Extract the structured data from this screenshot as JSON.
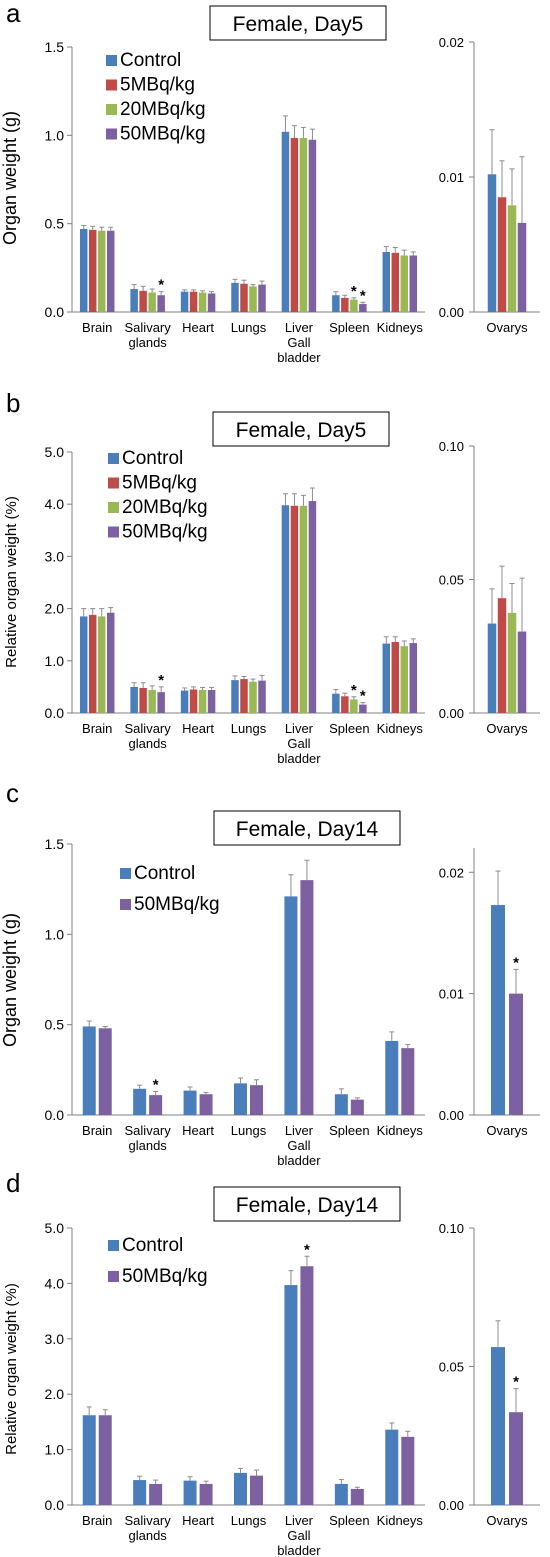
{
  "colors": {
    "Control": "#4a7ebb",
    "5MBq/kg": "#be4b48",
    "20MBq/kg": "#98b954",
    "50MBq/kg": "#7d60a0",
    "error_bar": "#8c8c8c",
    "axis": "#808080"
  },
  "chart_data": [
    {
      "type": "bar",
      "panel_letter": "a",
      "title": "Female, Day5",
      "ylabel": "Organ weight (g)",
      "categories": [
        "Brain",
        "Salivary glands",
        "Heart",
        "Lungs",
        "Liver Gall bladder",
        "Spleen",
        "Kidneys"
      ],
      "category_lines": [
        [
          "Brain"
        ],
        [
          "Salivary",
          "glands"
        ],
        [
          "Heart"
        ],
        [
          "Lungs"
        ],
        [
          "Liver",
          "Gall",
          "bladder"
        ],
        [
          "Spleen"
        ],
        [
          "Kidneys"
        ]
      ],
      "ylim": [
        0,
        1.5
      ],
      "yticks": [
        0,
        0.5,
        1.0,
        1.5
      ],
      "ytick_labels": [
        "0.0",
        "0.5",
        "1.0",
        "1.5"
      ],
      "series": [
        {
          "name": "Control",
          "values": [
            0.47,
            0.13,
            0.115,
            0.165,
            1.02,
            0.095,
            0.34
          ],
          "errors": [
            0.02,
            0.025,
            0.01,
            0.02,
            0.09,
            0.02,
            0.03
          ]
        },
        {
          "name": "5MBq/kg",
          "values": [
            0.465,
            0.12,
            0.115,
            0.16,
            0.985,
            0.08,
            0.335
          ],
          "errors": [
            0.02,
            0.025,
            0.01,
            0.02,
            0.07,
            0.015,
            0.03
          ]
        },
        {
          "name": "20MBq/kg",
          "values": [
            0.46,
            0.11,
            0.11,
            0.145,
            0.985,
            0.07,
            0.32
          ],
          "errors": [
            0.02,
            0.02,
            0.01,
            0.01,
            0.06,
            0.01,
            0.03
          ]
        },
        {
          "name": "50MBq/kg",
          "values": [
            0.46,
            0.095,
            0.105,
            0.155,
            0.975,
            0.045,
            0.32
          ],
          "errors": [
            0.02,
            0.02,
            0.01,
            0.02,
            0.06,
            0.01,
            0.02
          ]
        }
      ],
      "significance": [
        [
          1,
          3
        ],
        [
          5,
          2
        ],
        [
          5,
          3
        ]
      ],
      "legend": "top-left",
      "inset": {
        "categories": [
          "Ovarys"
        ],
        "ylim": [
          0,
          0.02
        ],
        "yticks": [
          0,
          0.01,
          0.02
        ],
        "ytick_labels": [
          "0.00",
          "0.01",
          "0.02"
        ],
        "values": [
          0.0102,
          0.0085,
          0.0079,
          0.0066
        ],
        "errors": [
          0.0033,
          0.0027,
          0.0027,
          0.0049
        ],
        "significance": []
      }
    },
    {
      "type": "bar",
      "panel_letter": "b",
      "title": "Female, Day5",
      "ylabel": "Relative organ weight (%)",
      "categories": [
        "Brain",
        "Salivary glands",
        "Heart",
        "Lungs",
        "Liver Gall bladder",
        "Spleen",
        "Kidneys"
      ],
      "category_lines": [
        [
          "Brain"
        ],
        [
          "Salivary",
          "glands"
        ],
        [
          "Heart"
        ],
        [
          "Lungs"
        ],
        [
          "Liver",
          "Gall",
          "bladder"
        ],
        [
          "Spleen"
        ],
        [
          "Kidneys"
        ]
      ],
      "ylim": [
        0,
        5.0
      ],
      "yticks": [
        0,
        1,
        2,
        3,
        4,
        5
      ],
      "ytick_labels": [
        "0.0",
        "1.0",
        "2.0",
        "3.0",
        "4.0",
        "5.0"
      ],
      "series": [
        {
          "name": "Control",
          "values": [
            1.85,
            0.5,
            0.43,
            0.63,
            3.98,
            0.37,
            1.33
          ],
          "errors": [
            0.15,
            0.08,
            0.05,
            0.08,
            0.22,
            0.08,
            0.13
          ]
        },
        {
          "name": "5MBq/kg",
          "values": [
            1.88,
            0.48,
            0.45,
            0.65,
            3.97,
            0.32,
            1.36
          ],
          "errors": [
            0.12,
            0.1,
            0.05,
            0.05,
            0.23,
            0.06,
            0.1
          ]
        },
        {
          "name": "20MBq/kg",
          "values": [
            1.85,
            0.44,
            0.44,
            0.6,
            3.97,
            0.26,
            1.28
          ],
          "errors": [
            0.15,
            0.08,
            0.05,
            0.05,
            0.2,
            0.05,
            0.1
          ]
        },
        {
          "name": "50MBq/kg",
          "values": [
            1.92,
            0.4,
            0.44,
            0.62,
            4.06,
            0.16,
            1.34
          ],
          "errors": [
            0.1,
            0.1,
            0.05,
            0.1,
            0.25,
            0.04,
            0.08
          ]
        }
      ],
      "significance": [
        [
          1,
          3
        ],
        [
          5,
          2
        ],
        [
          5,
          3
        ]
      ],
      "legend": "top-left",
      "inset": {
        "categories": [
          "Ovarys"
        ],
        "ylim": [
          0,
          0.1
        ],
        "yticks": [
          0,
          0.05,
          0.1
        ],
        "ytick_labels": [
          "0.00",
          "0.05",
          "0.10"
        ],
        "values": [
          0.0335,
          0.043,
          0.0375,
          0.0305
        ],
        "errors": [
          0.013,
          0.012,
          0.011,
          0.02
        ],
        "significance": []
      }
    },
    {
      "type": "bar",
      "panel_letter": "c",
      "title": "Female, Day14",
      "ylabel": "Organ weight (g)",
      "categories": [
        "Brain",
        "Salivary glands",
        "Heart",
        "Lungs",
        "Liver Gall bladder",
        "Spleen",
        "Kidneys"
      ],
      "category_lines": [
        [
          "Brain"
        ],
        [
          "Salivary",
          "glands"
        ],
        [
          "Heart"
        ],
        [
          "Lungs"
        ],
        [
          "Liver",
          "Gall",
          "bladder"
        ],
        [
          "Spleen"
        ],
        [
          "Kidneys"
        ]
      ],
      "ylim": [
        0,
        1.5
      ],
      "yticks": [
        0,
        0.5,
        1.0,
        1.5
      ],
      "ytick_labels": [
        "0.0",
        "0.5",
        "1.0",
        "1.5"
      ],
      "series": [
        {
          "name": "Control",
          "values": [
            0.49,
            0.145,
            0.135,
            0.175,
            1.21,
            0.115,
            0.41
          ],
          "errors": [
            0.03,
            0.02,
            0.02,
            0.03,
            0.12,
            0.03,
            0.05
          ]
        },
        {
          "name": "50MBq/kg",
          "values": [
            0.48,
            0.11,
            0.115,
            0.165,
            1.3,
            0.085,
            0.37
          ],
          "errors": [
            0.01,
            0.02,
            0.01,
            0.03,
            0.11,
            0.01,
            0.02
          ]
        }
      ],
      "significance": [
        [
          1,
          1
        ]
      ],
      "legend": "top-left",
      "inset": {
        "categories": [
          "Ovarys"
        ],
        "ylim": [
          0,
          0.022
        ],
        "yticks": [
          0,
          0.01,
          0.02
        ],
        "ytick_labels": [
          "0.00",
          "0.01",
          "0.02"
        ],
        "values": [
          0.0173,
          0.01
        ],
        "errors": [
          0.0028,
          0.002
        ],
        "significance": [
          1
        ]
      }
    },
    {
      "type": "bar",
      "panel_letter": "d",
      "title": "Female, Day14",
      "ylabel": "Relative organ weight (%)",
      "categories": [
        "Brain",
        "Salivary glands",
        "Heart",
        "Lungs",
        "Liver Gall bladder",
        "Spleen",
        "Kidneys"
      ],
      "category_lines": [
        [
          "Brain"
        ],
        [
          "Salivary",
          "glands"
        ],
        [
          "Heart"
        ],
        [
          "Lungs"
        ],
        [
          "Liver",
          "Gall",
          "bladder"
        ],
        [
          "Spleen"
        ],
        [
          "Kidneys"
        ]
      ],
      "ylim": [
        0,
        5.0
      ],
      "yticks": [
        0,
        1,
        2,
        3,
        4,
        5
      ],
      "ytick_labels": [
        "0.0",
        "1.0",
        "2.0",
        "3.0",
        "4.0",
        "5.0"
      ],
      "series": [
        {
          "name": "Control",
          "values": [
            1.62,
            0.45,
            0.44,
            0.58,
            3.97,
            0.38,
            1.36
          ],
          "errors": [
            0.15,
            0.07,
            0.07,
            0.08,
            0.26,
            0.08,
            0.12
          ]
        },
        {
          "name": "50MBq/kg",
          "values": [
            1.62,
            0.38,
            0.38,
            0.53,
            4.31,
            0.29,
            1.23
          ],
          "errors": [
            0.1,
            0.07,
            0.05,
            0.1,
            0.18,
            0.03,
            0.1
          ]
        }
      ],
      "significance": [
        [
          4,
          1
        ]
      ],
      "legend": "top-left",
      "inset": {
        "categories": [
          "Ovarys"
        ],
        "ylim": [
          0,
          0.1
        ],
        "yticks": [
          0,
          0.05,
          0.1
        ],
        "ytick_labels": [
          "0.00",
          "0.05",
          "0.10"
        ],
        "values": [
          0.057,
          0.0335
        ],
        "errors": [
          0.0095,
          0.0085
        ],
        "significance": [
          1
        ]
      }
    }
  ]
}
